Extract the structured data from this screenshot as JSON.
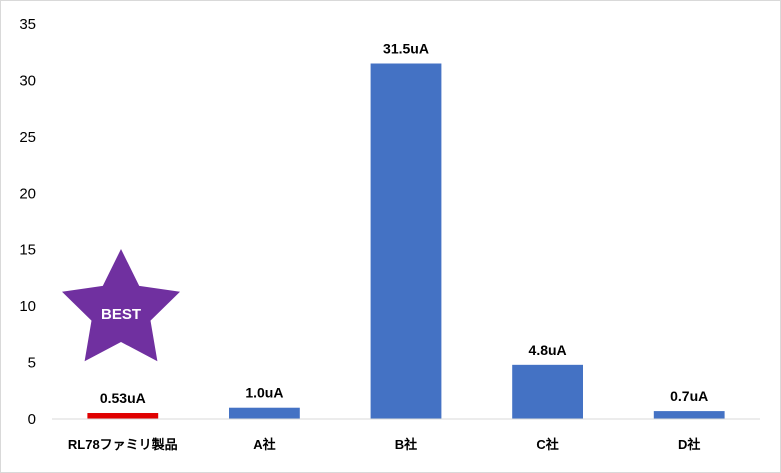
{
  "chart_data": {
    "type": "bar",
    "categories": [
      "RL78ファミリ製品",
      "A社",
      "B社",
      "C社",
      "D社"
    ],
    "values": [
      0.53,
      1.0,
      31.5,
      4.8,
      0.7
    ],
    "data_labels": [
      "0.53uA",
      "1.0uA",
      "31.5uA",
      "4.8uA",
      "0.7uA"
    ],
    "yticks": [
      0,
      5,
      10,
      15,
      20,
      25,
      30,
      35
    ],
    "ylim": [
      0,
      35
    ],
    "grid": false,
    "colors": {
      "bar": "#4472c4",
      "highlight": "#e00000",
      "badge": "#7030a0"
    },
    "highlight_index": 0,
    "annotation": {
      "text": "BEST",
      "shape": "star"
    }
  }
}
